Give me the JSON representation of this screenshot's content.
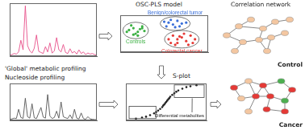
{
  "chart_data": [
    {
      "type": "line",
      "title": "'Global' metabolic profiling",
      "color": "#e8508a",
      "x": [
        0,
        1,
        2,
        3,
        4,
        5,
        6,
        7,
        8,
        9,
        10,
        11,
        12,
        13,
        14,
        15,
        16,
        17,
        18,
        19,
        20,
        21,
        22,
        23,
        24,
        25,
        26,
        27,
        28,
        29,
        30,
        31,
        32,
        33,
        34,
        35,
        36,
        37,
        38,
        39
      ],
      "values": [
        2,
        3,
        5,
        4,
        8,
        30,
        12,
        95,
        20,
        10,
        6,
        15,
        40,
        9,
        7,
        5,
        18,
        8,
        25,
        6,
        10,
        35,
        12,
        8,
        22,
        7,
        5,
        14,
        6,
        9,
        4,
        12,
        5,
        8,
        3,
        6,
        4,
        5,
        3,
        2
      ],
      "xlim": [
        0,
        39
      ],
      "ylim": [
        0,
        100
      ],
      "tick_labels": false,
      "grid": false
    },
    {
      "type": "line",
      "title": "Nucleoside profiling",
      "color": "#555555",
      "x": [
        0,
        1,
        2,
        3,
        4,
        5,
        6,
        7,
        8,
        9,
        10,
        11,
        12,
        13,
        14,
        15,
        16,
        17,
        18,
        19,
        20,
        21,
        22,
        23,
        24,
        25,
        26,
        27,
        28,
        29,
        30,
        31,
        32,
        33,
        34,
        35,
        36,
        37,
        38,
        39
      ],
      "values": [
        3,
        4,
        6,
        5,
        30,
        8,
        5,
        60,
        10,
        6,
        45,
        7,
        5,
        20,
        35,
        9,
        6,
        70,
        12,
        5,
        8,
        25,
        6,
        50,
        10,
        7,
        5,
        15,
        4,
        30,
        6,
        4,
        20,
        5,
        3,
        10,
        4,
        3,
        2,
        2
      ],
      "xlim": [
        0,
        39
      ],
      "ylim": [
        0,
        100
      ],
      "tick_labels": false,
      "grid": false
    },
    {
      "type": "scatter",
      "title": "OSC-PLS model",
      "series": [
        {
          "name": "Controls",
          "color": "#3cb043",
          "x": [
            -7,
            -6,
            -8,
            -5,
            -6.5,
            -7.5,
            -5.5,
            -8.5,
            -6,
            -4.5,
            -7,
            -5
          ],
          "values": [
            3,
            1,
            2,
            4,
            0,
            4.5,
            2.5,
            1,
            -1,
            1.5,
            -0.5,
            3
          ]
        },
        {
          "name": "Benign/colorectal tumor",
          "color": "#3a6fd8",
          "x": [
            1,
            2,
            3,
            0.5,
            2.5,
            4,
            1.5,
            3.5,
            0,
            5
          ],
          "values": [
            6,
            5,
            7,
            4,
            3.5,
            5.5,
            7.5,
            4,
            6.5,
            6
          ]
        },
        {
          "name": "Colorectal cancer",
          "color": "#e53935",
          "x": [
            2,
            3,
            4,
            5,
            1,
            6,
            3,
            4.5,
            2.5,
            7,
            5.5,
            1.5,
            6.5,
            3.5
          ],
          "values": [
            -1,
            -3,
            -2,
            -4,
            -3,
            -1,
            -5,
            0,
            -6,
            -3,
            -6,
            -5,
            -5,
            -1.5
          ]
        }
      ],
      "xlim": [
        -10,
        10
      ],
      "ylim": [
        -10,
        10
      ],
      "tick_labels": false,
      "grid": false
    },
    {
      "type": "scatter",
      "title": "S-plot",
      "color": "#222222",
      "x": [
        -0.15,
        -0.12,
        -0.1,
        -0.08,
        -0.06,
        -0.05,
        -0.04,
        -0.03,
        -0.02,
        -0.015,
        -0.01,
        -0.005,
        0,
        0.005,
        0.01,
        0.015,
        0.02,
        0.03,
        0.04,
        0.05,
        0.06,
        0.08,
        0.1,
        0.12,
        0.15
      ],
      "values": [
        -0.9,
        -0.85,
        -0.8,
        -0.72,
        -0.62,
        -0.55,
        -0.47,
        -0.38,
        -0.28,
        -0.2,
        -0.14,
        -0.07,
        0,
        0.07,
        0.14,
        0.2,
        0.28,
        0.38,
        0.47,
        0.55,
        0.62,
        0.72,
        0.8,
        0.85,
        0.9
      ],
      "xlim": [
        -0.2,
        0.2
      ],
      "ylim": [
        -1,
        1
      ],
      "tick_labels": false,
      "grid": false,
      "annotations": [
        "Differential metabolites"
      ]
    }
  ],
  "network": {
    "title": "Correlation network",
    "graphs": [
      {
        "label": "Control",
        "node_colors": [
          "#f4c7a1",
          "#f4c7a1",
          "#f4c7a1",
          "#f4c7a1",
          "#f4c7a1",
          "#f4c7a1",
          "#f4c7a1",
          "#f4c7a1",
          "#f4c7a1",
          "#f4c7a1",
          "#f4c7a1",
          "#f4c7a1"
        ],
        "edges": [
          [
            0,
            1
          ],
          [
            1,
            2
          ],
          [
            1,
            3
          ],
          [
            3,
            4
          ],
          [
            4,
            5
          ],
          [
            0,
            6
          ],
          [
            6,
            7
          ],
          [
            7,
            8
          ],
          [
            8,
            9
          ],
          [
            3,
            7
          ],
          [
            7,
            10
          ],
          [
            6,
            11
          ],
          [
            8,
            10
          ]
        ]
      },
      {
        "label": "Cancer",
        "node_colors": [
          "#e53935",
          "#f4c7a1",
          "#e53935",
          "#4caf50",
          "#e53935",
          "#f4c7a1",
          "#e53935",
          "#e53935",
          "#4caf50",
          "#f4c7a1",
          "#e53935",
          "#e53935"
        ],
        "edges": [
          [
            0,
            1
          ],
          [
            1,
            2
          ],
          [
            2,
            3
          ],
          [
            3,
            4
          ],
          [
            0,
            5
          ],
          [
            5,
            6
          ],
          [
            6,
            7
          ],
          [
            7,
            8
          ],
          [
            2,
            6
          ],
          [
            2,
            7
          ],
          [
            6,
            9
          ],
          [
            7,
            10
          ],
          [
            8,
            11
          ],
          [
            10,
            11
          ],
          [
            4,
            8
          ],
          [
            1,
            6
          ]
        ]
      }
    ]
  }
}
